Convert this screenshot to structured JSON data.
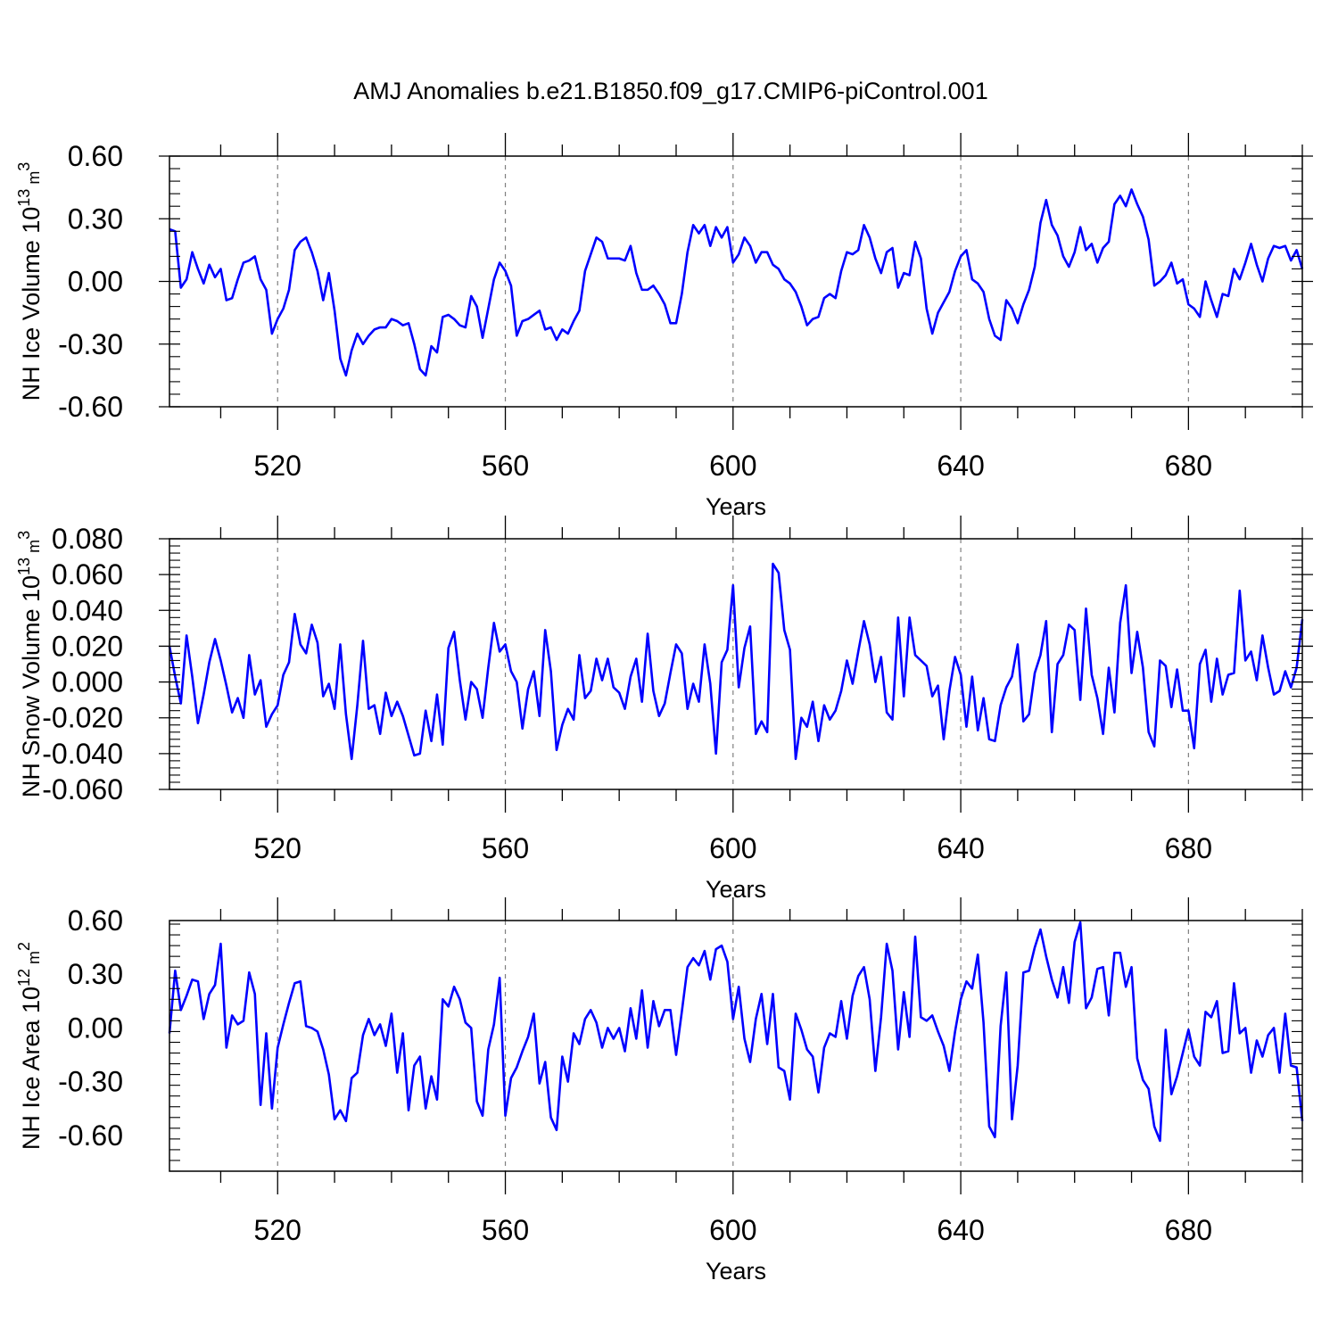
{
  "figure": {
    "title": "AMJ Anomalies b.e21.B1850.f09_g17.CMIP6-piControl.001"
  },
  "colors": {
    "line": "#0000ff",
    "axis": "#000000",
    "grid": "#808080"
  },
  "chart_data": [
    {
      "type": "line",
      "title": "AMJ Anomalies b.e21.B1850.f09_g17.CMIP6-piControl.001",
      "xlabel": "Years",
      "ylabel_main": "NH Ice Volume 10",
      "ylabel_exp": "13",
      "ylabel_unit": " m",
      "ylabel_unit_exp": "3",
      "xlim": [
        501,
        700
      ],
      "ylim": [
        -0.6,
        0.6
      ],
      "yticks": [
        -0.6,
        -0.3,
        0.0,
        0.3,
        0.6
      ],
      "ytick_labels": [
        "-0.60",
        "-0.30",
        "0.00",
        "0.30",
        "0.60"
      ],
      "xticks": [
        520,
        560,
        600,
        640,
        680
      ],
      "xtick_labels": [
        "520",
        "560",
        "600",
        "640",
        "680"
      ],
      "grid_x": true,
      "series": [
        {
          "name": "NH Ice Volume",
          "x_start": 501,
          "values": [
            0.25,
            0.24,
            -0.03,
            0.01,
            0.14,
            0.06,
            -0.01,
            0.08,
            0.02,
            0.06,
            -0.09,
            -0.08,
            0.01,
            0.09,
            0.1,
            0.12,
            0.01,
            -0.04,
            -0.25,
            -0.18,
            -0.13,
            -0.04,
            0.15,
            0.19,
            0.21,
            0.14,
            0.05,
            -0.09,
            0.04,
            -0.14,
            -0.37,
            -0.45,
            -0.33,
            -0.25,
            -0.3,
            -0.26,
            -0.23,
            -0.22,
            -0.22,
            -0.18,
            -0.19,
            -0.21,
            -0.2,
            -0.3,
            -0.42,
            -0.45,
            -0.31,
            -0.34,
            -0.17,
            -0.16,
            -0.18,
            -0.21,
            -0.22,
            -0.07,
            -0.12,
            -0.27,
            -0.13,
            0.01,
            0.09,
            0.05,
            -0.02,
            -0.26,
            -0.19,
            -0.18,
            -0.16,
            -0.14,
            -0.23,
            -0.22,
            -0.28,
            -0.23,
            -0.25,
            -0.19,
            -0.14,
            0.05,
            0.13,
            0.21,
            0.19,
            0.11,
            0.11,
            0.11,
            0.1,
            0.17,
            0.04,
            -0.04,
            -0.04,
            -0.02,
            -0.06,
            -0.11,
            -0.2,
            -0.2,
            -0.06,
            0.14,
            0.27,
            0.23,
            0.27,
            0.17,
            0.26,
            0.21,
            0.26,
            0.09,
            0.13,
            0.21,
            0.17,
            0.09,
            0.14,
            0.14,
            0.08,
            0.06,
            0.01,
            -0.01,
            -0.05,
            -0.12,
            -0.21,
            -0.18,
            -0.17,
            -0.08,
            -0.06,
            -0.08,
            0.05,
            0.14,
            0.13,
            0.15,
            0.27,
            0.21,
            0.11,
            0.04,
            0.14,
            0.16,
            -0.03,
            0.04,
            0.03,
            0.19,
            0.11,
            -0.13,
            -0.25,
            -0.15,
            -0.1,
            -0.05,
            0.05,
            0.12,
            0.15,
            0.01,
            -0.01,
            -0.05,
            -0.18,
            -0.26,
            -0.28,
            -0.09,
            -0.13,
            -0.2,
            -0.11,
            -0.04,
            0.07,
            0.28,
            0.39,
            0.27,
            0.22,
            0.12,
            0.07,
            0.14,
            0.26,
            0.15,
            0.18,
            0.09,
            0.16,
            0.19,
            0.37,
            0.41,
            0.36,
            0.44,
            0.37,
            0.31,
            0.2,
            -0.02,
            0.0,
            0.03,
            0.09,
            -0.01,
            0.01,
            -0.11,
            -0.13,
            -0.17,
            0.0,
            -0.09,
            -0.17,
            -0.06,
            -0.07,
            0.06,
            0.01,
            0.09,
            0.18,
            0.08,
            0.0,
            0.11,
            0.17,
            0.16,
            0.17,
            0.1,
            0.15,
            0.06
          ]
        }
      ]
    },
    {
      "type": "line",
      "xlabel": "Years",
      "ylabel_main": "NH Snow Volume 10",
      "ylabel_exp": "13",
      "ylabel_unit": " m",
      "ylabel_unit_exp": "3",
      "xlim": [
        501,
        700
      ],
      "ylim": [
        -0.06,
        0.08
      ],
      "yticks": [
        -0.06,
        -0.04,
        -0.02,
        0.0,
        0.02,
        0.04,
        0.06,
        0.08
      ],
      "ytick_labels": [
        "-0.060",
        "-0.040",
        "-0.020",
        "0.000",
        "0.020",
        "0.040",
        "0.060",
        "0.080"
      ],
      "xticks": [
        520,
        560,
        600,
        640,
        680
      ],
      "xtick_labels": [
        "520",
        "560",
        "600",
        "640",
        "680"
      ],
      "grid_x": true,
      "series": [
        {
          "name": "NH Snow Volume",
          "x_start": 501,
          "values": [
            0.02,
            0.003,
            -0.012,
            0.026,
            0.003,
            -0.023,
            -0.007,
            0.011,
            0.024,
            0.012,
            -0.002,
            -0.017,
            -0.009,
            -0.02,
            0.015,
            -0.007,
            0.001,
            -0.025,
            -0.018,
            -0.013,
            0.004,
            0.011,
            0.038,
            0.021,
            0.016,
            0.032,
            0.022,
            -0.008,
            -0.001,
            -0.015,
            0.021,
            -0.018,
            -0.043,
            -0.013,
            0.023,
            -0.015,
            -0.013,
            -0.029,
            -0.006,
            -0.019,
            -0.011,
            -0.019,
            -0.03,
            -0.041,
            -0.04,
            -0.016,
            -0.033,
            -0.007,
            -0.035,
            0.019,
            0.028,
            0.001,
            -0.021,
            0.0,
            -0.004,
            -0.02,
            0.008,
            0.033,
            0.017,
            0.021,
            0.006,
            -0.0,
            -0.026,
            -0.004,
            0.006,
            -0.019,
            0.029,
            0.006,
            -0.038,
            -0.024,
            -0.015,
            -0.021,
            0.015,
            -0.009,
            -0.005,
            0.013,
            0.001,
            0.013,
            -0.003,
            -0.006,
            -0.015,
            0.003,
            0.013,
            -0.011,
            0.027,
            -0.005,
            -0.019,
            -0.012,
            0.005,
            0.021,
            0.016,
            -0.015,
            -0.001,
            -0.011,
            0.021,
            -0.001,
            -0.04,
            0.011,
            0.018,
            0.054,
            -0.003,
            0.019,
            0.031,
            -0.029,
            -0.022,
            -0.028,
            0.066,
            0.061,
            0.029,
            0.018,
            -0.043,
            -0.02,
            -0.025,
            -0.011,
            -0.033,
            -0.013,
            -0.021,
            -0.016,
            -0.005,
            0.012,
            -0.001,
            0.017,
            0.034,
            0.021,
            0.0,
            0.014,
            -0.017,
            -0.021,
            0.036,
            -0.008,
            0.036,
            0.015,
            0.012,
            0.009,
            -0.008,
            -0.002,
            -0.032,
            -0.005,
            0.014,
            0.004,
            -0.025,
            0.003,
            -0.027,
            -0.009,
            -0.032,
            -0.033,
            -0.013,
            -0.003,
            0.003,
            0.021,
            -0.022,
            -0.018,
            0.005,
            0.015,
            0.034,
            -0.028,
            0.01,
            0.015,
            0.032,
            0.029,
            -0.01,
            0.041,
            0.004,
            -0.009,
            -0.029,
            0.008,
            -0.017,
            0.033,
            0.054,
            0.005,
            0.028,
            0.008,
            -0.028,
            -0.036,
            0.012,
            0.009,
            -0.014,
            0.007,
            -0.016,
            -0.016,
            -0.037,
            0.01,
            0.018,
            -0.011,
            0.013,
            -0.007,
            0.004,
            0.005,
            0.051,
            0.012,
            0.017,
            0.001,
            0.026,
            0.008,
            -0.007,
            -0.005,
            0.006,
            -0.003,
            0.008,
            0.035
          ]
        }
      ]
    },
    {
      "type": "line",
      "xlabel": "Years",
      "ylabel_main": "NH Ice Area 10",
      "ylabel_exp": "12",
      "ylabel_unit": " m",
      "ylabel_unit_exp": "2",
      "xlim": [
        501,
        700
      ],
      "ylim": [
        -0.8,
        0.6
      ],
      "yticks": [
        -0.6,
        -0.3,
        0.0,
        0.3,
        0.6
      ],
      "ytick_labels": [
        "-0.60",
        "-0.30",
        "0.00",
        "0.30",
        "0.60"
      ],
      "xticks": [
        520,
        560,
        600,
        640,
        680
      ],
      "xtick_labels": [
        "520",
        "560",
        "600",
        "640",
        "680"
      ],
      "grid_x": true,
      "series": [
        {
          "name": "NH Ice Area",
          "x_start": 501,
          "values": [
            -0.03,
            0.32,
            0.1,
            0.18,
            0.27,
            0.26,
            0.05,
            0.19,
            0.24,
            0.47,
            -0.11,
            0.07,
            0.02,
            0.04,
            0.31,
            0.19,
            -0.43,
            -0.03,
            -0.45,
            -0.11,
            0.02,
            0.14,
            0.25,
            0.26,
            0.01,
            0.0,
            -0.02,
            -0.12,
            -0.26,
            -0.51,
            -0.46,
            -0.52,
            -0.28,
            -0.25,
            -0.04,
            0.05,
            -0.04,
            0.02,
            -0.1,
            0.08,
            -0.25,
            -0.03,
            -0.46,
            -0.21,
            -0.16,
            -0.45,
            -0.27,
            -0.4,
            0.16,
            0.12,
            0.23,
            0.16,
            0.03,
            0.0,
            -0.41,
            -0.49,
            -0.12,
            0.02,
            0.28,
            -0.49,
            -0.28,
            -0.22,
            -0.13,
            -0.05,
            0.08,
            -0.31,
            -0.19,
            -0.5,
            -0.57,
            -0.16,
            -0.3,
            -0.03,
            -0.09,
            0.05,
            0.1,
            0.03,
            -0.11,
            0.0,
            -0.06,
            0.0,
            -0.13,
            0.11,
            -0.06,
            0.21,
            -0.11,
            0.15,
            0.01,
            0.1,
            0.1,
            -0.15,
            0.09,
            0.34,
            0.39,
            0.35,
            0.43,
            0.27,
            0.44,
            0.46,
            0.37,
            0.05,
            0.23,
            -0.06,
            -0.19,
            0.05,
            0.19,
            -0.09,
            0.19,
            -0.22,
            -0.24,
            -0.4,
            0.08,
            -0.01,
            -0.12,
            -0.16,
            -0.36,
            -0.11,
            -0.03,
            -0.05,
            0.15,
            -0.06,
            0.18,
            0.29,
            0.34,
            0.16,
            -0.24,
            0.06,
            0.47,
            0.32,
            -0.12,
            0.2,
            -0.05,
            0.51,
            0.06,
            0.04,
            0.07,
            -0.02,
            -0.1,
            -0.24,
            -0.02,
            0.16,
            0.26,
            0.22,
            0.41,
            0.03,
            -0.55,
            -0.61,
            0.01,
            0.31,
            -0.51,
            -0.21,
            0.31,
            0.32,
            0.45,
            0.55,
            0.4,
            0.27,
            0.17,
            0.34,
            0.14,
            0.48,
            0.59,
            0.11,
            0.17,
            0.33,
            0.34,
            0.07,
            0.42,
            0.42,
            0.23,
            0.34,
            -0.17,
            -0.29,
            -0.34,
            -0.55,
            -0.63,
            -0.01,
            -0.37,
            -0.27,
            -0.14,
            -0.01,
            -0.16,
            -0.21,
            0.09,
            0.06,
            0.15,
            -0.14,
            -0.13,
            0.25,
            -0.03,
            0.0,
            -0.25,
            -0.07,
            -0.16,
            -0.04,
            0.0,
            -0.25,
            0.08,
            -0.21,
            -0.22,
            -0.52
          ]
        }
      ]
    }
  ]
}
